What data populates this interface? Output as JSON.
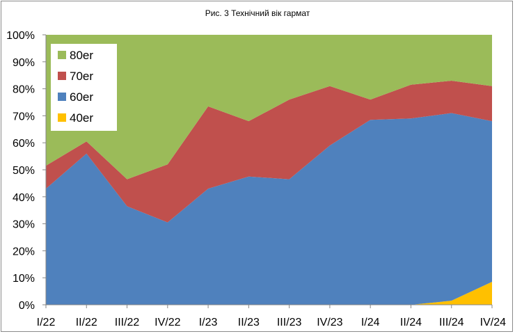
{
  "chart_data": {
    "type": "area",
    "stacked": true,
    "percent": true,
    "title": "Рис. 3 Технічний вік гармат",
    "xlabel": "",
    "ylabel": "",
    "ylim": [
      0,
      100
    ],
    "y_ticks": [
      "0%",
      "10%",
      "20%",
      "30%",
      "40%",
      "50%",
      "60%",
      "70%",
      "80%",
      "90%",
      "100%"
    ],
    "categories": [
      "I/22",
      "II/22",
      "III/22",
      "IV/22",
      "I/23",
      "II/23",
      "III/23",
      "IV/23",
      "I/24",
      "II/24",
      "III/24",
      "IV/24"
    ],
    "legend_position": "top-left",
    "grid": false,
    "series": [
      {
        "name": "40er",
        "color": "#ffc000",
        "values": [
          0,
          0,
          0,
          0,
          0,
          0,
          0,
          0,
          0,
          0,
          1.5,
          8.5
        ]
      },
      {
        "name": "60er",
        "color": "#4f81bd",
        "values": [
          43,
          56,
          36.5,
          30.5,
          43,
          47.5,
          46.5,
          59,
          68.5,
          69,
          69.5,
          59.5
        ]
      },
      {
        "name": "70er",
        "color": "#c0504d",
        "values": [
          8.5,
          4.5,
          10,
          21.5,
          30.5,
          20.5,
          29.5,
          22,
          7.5,
          12.5,
          12,
          13
        ]
      },
      {
        "name": "80er",
        "color": "#9bbb59",
        "values": [
          48.5,
          39.5,
          53.5,
          48,
          26.5,
          32,
          24,
          19,
          24,
          18.5,
          17,
          19
        ]
      }
    ]
  }
}
